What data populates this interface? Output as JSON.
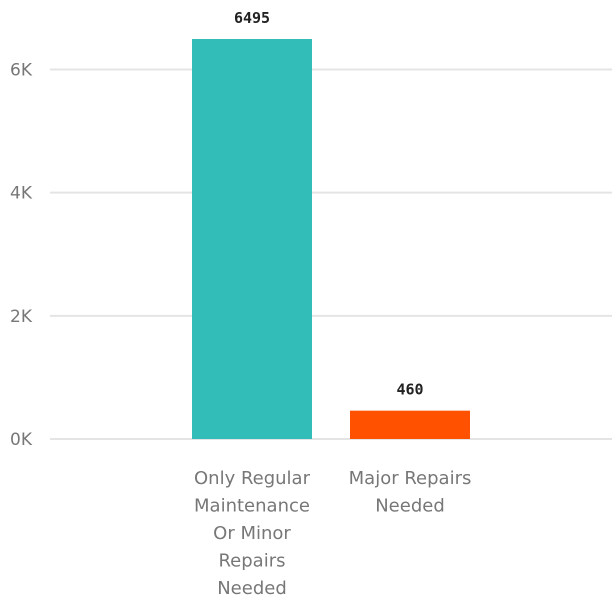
{
  "chart_data": {
    "type": "bar",
    "categories": [
      [
        "Only Regular",
        "Maintenance",
        "Or Minor",
        "Repairs",
        "Needed"
      ],
      [
        "Major Repairs",
        "Needed"
      ]
    ],
    "values": [
      6495,
      460
    ],
    "data_labels": [
      "6495",
      "460"
    ],
    "colors": [
      "#33BDB9",
      "#FF5100"
    ],
    "y_ticks": [
      {
        "value": 0,
        "label": "0K"
      },
      {
        "value": 2000,
        "label": "2K"
      },
      {
        "value": 4000,
        "label": "4K"
      },
      {
        "value": 6000,
        "label": "6K"
      }
    ],
    "ylim": [
      0,
      6495
    ],
    "grid": true,
    "title": "",
    "xlabel": "",
    "ylabel": ""
  }
}
